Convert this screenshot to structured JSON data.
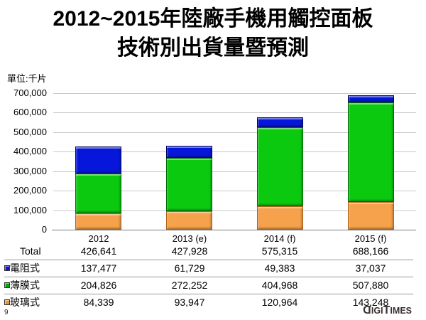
{
  "slide": {
    "title_line1": "2012~2015年陸廠手機用觸控面板",
    "title_line2": "技術別出貨量暨預測",
    "unit_label": "單位:千片",
    "page_number": "9",
    "brand": "DIGITIMES"
  },
  "chart_data": {
    "type": "bar",
    "stacked": true,
    "title": "2012~2015年陸廠手機用觸控面板技術別出貨量暨預測",
    "unit": "千片",
    "categories": [
      "2012",
      "2013 (e)",
      "2014 (f)",
      "2015 (f)"
    ],
    "series": [
      {
        "name": "玻璃式",
        "color": "#F6A14B",
        "border_color": "#B06519",
        "values": [
          84339,
          93947,
          120964,
          143248
        ]
      },
      {
        "name": "薄膜式",
        "color": "#0BC90F",
        "border_color": "#036B06",
        "values": [
          204826,
          272252,
          404968,
          507880
        ]
      },
      {
        "name": "電阻式",
        "color": "#0617DB",
        "border_color": "#01045E",
        "values": [
          137477,
          61729,
          49383,
          37037
        ]
      }
    ],
    "totals": [
      426641,
      427928,
      575315,
      688166
    ],
    "ylim": [
      0,
      700000
    ],
    "ytick_step": 100000,
    "ytick_labels": [
      "0",
      "100,000",
      "200,000",
      "300,000",
      "400,000",
      "500,000",
      "600,000",
      "700,000"
    ],
    "grid": true,
    "legend_position": "table_below_chart"
  },
  "table": {
    "rows": [
      {
        "label": "Total",
        "swatch_color": null,
        "values": [
          "426,641",
          "427,928",
          "575,315",
          "688,166"
        ]
      },
      {
        "label": "電阻式",
        "swatch_color": "#1515CE",
        "values": [
          "137,477",
          "61,729",
          "49,383",
          "37,037"
        ]
      },
      {
        "label": "薄膜式",
        "swatch_color": "#00A80B",
        "values": [
          "204,826",
          "272,252",
          "404,968",
          "507,880"
        ]
      },
      {
        "label": "玻璃式",
        "swatch_color": "#E8943C",
        "values": [
          "84,339",
          "93,947",
          "120,964",
          "143,248"
        ]
      }
    ]
  }
}
